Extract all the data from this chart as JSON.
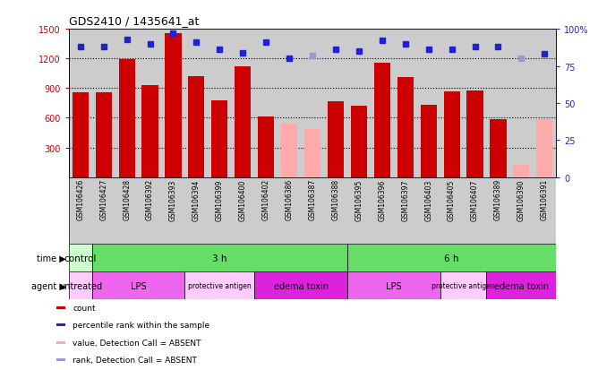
{
  "title": "GDS2410 / 1435641_at",
  "samples": [
    "GSM106426",
    "GSM106427",
    "GSM106428",
    "GSM106392",
    "GSM106393",
    "GSM106394",
    "GSM106399",
    "GSM106400",
    "GSM106402",
    "GSM106386",
    "GSM106387",
    "GSM106388",
    "GSM106395",
    "GSM106396",
    "GSM106397",
    "GSM106403",
    "GSM106405",
    "GSM106407",
    "GSM106389",
    "GSM106390",
    "GSM106391"
  ],
  "counts": [
    860,
    860,
    1190,
    930,
    1460,
    1020,
    780,
    1120,
    610,
    540,
    490,
    770,
    720,
    1160,
    1010,
    730,
    870,
    880,
    585,
    120,
    590
  ],
  "absent": [
    false,
    false,
    false,
    false,
    false,
    false,
    false,
    false,
    false,
    true,
    true,
    false,
    false,
    false,
    false,
    false,
    false,
    false,
    false,
    true,
    true
  ],
  "percentile_ranks": [
    88,
    88,
    93,
    90,
    97,
    91,
    86,
    84,
    91,
    80,
    82,
    86,
    85,
    92,
    90,
    86,
    86,
    88,
    88,
    80,
    83
  ],
  "rank_absent": [
    false,
    false,
    false,
    false,
    false,
    false,
    false,
    false,
    false,
    false,
    true,
    false,
    false,
    false,
    false,
    false,
    false,
    false,
    false,
    true,
    false
  ],
  "ylim_left": [
    0,
    1500
  ],
  "ylim_right": [
    0,
    100
  ],
  "yticks_left": [
    300,
    600,
    900,
    1200,
    1500
  ],
  "yticks_right": [
    0,
    25,
    50,
    75,
    100
  ],
  "time_groups": [
    {
      "label": "control",
      "start": 0,
      "end": 1,
      "color": "#ccffcc"
    },
    {
      "label": "3 h",
      "start": 1,
      "end": 12,
      "color": "#66dd66"
    },
    {
      "label": "6 h",
      "start": 12,
      "end": 21,
      "color": "#66dd66"
    }
  ],
  "agent_groups": [
    {
      "label": "untreated",
      "start": 0,
      "end": 1,
      "color": "#ffccff"
    },
    {
      "label": "LPS",
      "start": 1,
      "end": 5,
      "color": "#ee66ee"
    },
    {
      "label": "protective antigen",
      "start": 5,
      "end": 8,
      "color": "#ffccff"
    },
    {
      "label": "edema toxin",
      "start": 8,
      "end": 12,
      "color": "#dd22dd"
    },
    {
      "label": "LPS",
      "start": 12,
      "end": 16,
      "color": "#ee66ee"
    },
    {
      "label": "protective antigen",
      "start": 16,
      "end": 18,
      "color": "#ffccff"
    },
    {
      "label": "edema toxin",
      "start": 18,
      "end": 21,
      "color": "#dd22dd"
    }
  ],
  "bar_color_present": "#cc0000",
  "bar_color_absent": "#ffaaaa",
  "rank_color_present": "#2222cc",
  "rank_color_absent": "#9999cc",
  "bg_color": "#cccccc",
  "right_axis_color": "#2222cc",
  "left_axis_color": "#cc0000"
}
